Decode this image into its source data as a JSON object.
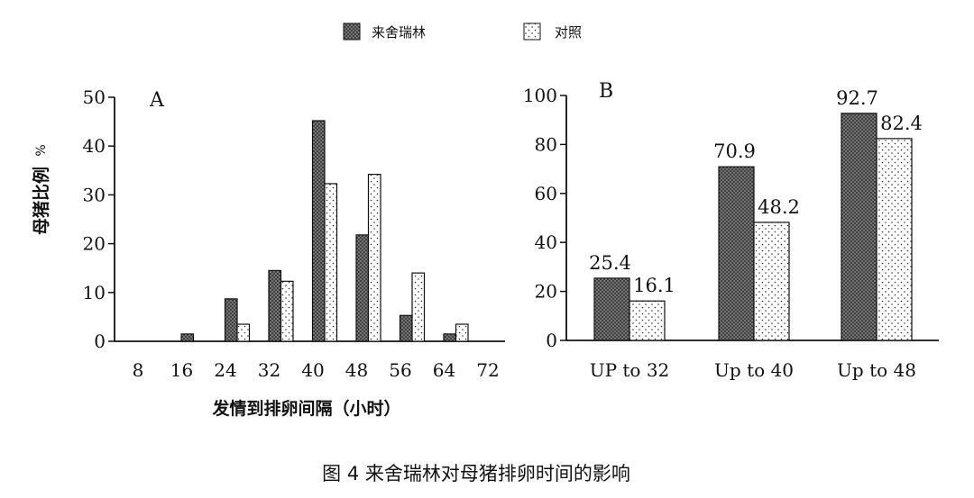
{
  "caption": "图 4 来舍瑞林对母猪排卵时间的影响",
  "legend": [
    {
      "label": "来舍瑞林",
      "pattern": "crosshatch"
    },
    {
      "label": "对照",
      "pattern": "dots"
    }
  ],
  "xlabel": "发情到排卵间隔（小时）",
  "ylabel": "母猪比例",
  "ylabel_unit": "%",
  "colors": {
    "stroke": "#111111",
    "treatment_fill": "#7a7a7a",
    "control_fill": "#ffffff"
  },
  "chart_data": [
    {
      "type": "bar",
      "panel_label": "A",
      "x_ticks": [
        "8",
        "16",
        "24",
        "32",
        "40",
        "48",
        "56",
        "64",
        "72"
      ],
      "ylim": [
        0,
        50
      ],
      "y_ticks": [
        "0",
        "10",
        "20",
        "30",
        "40",
        "50"
      ],
      "grid": false,
      "series": [
        {
          "name": "来舍瑞林",
          "values": [
            0,
            1.5,
            8.7,
            14.5,
            45.2,
            21.8,
            5.3,
            1.5,
            0
          ]
        },
        {
          "name": "对照",
          "values": [
            0,
            0,
            3.5,
            12.3,
            32.3,
            34.2,
            14.0,
            3.5,
            0
          ]
        }
      ]
    },
    {
      "type": "bar",
      "panel_label": "B",
      "categories": [
        "UP to 32",
        "Up to 40",
        "Up to 48"
      ],
      "ylim": [
        0,
        100
      ],
      "y_ticks": [
        "0",
        "20",
        "40",
        "60",
        "80",
        "100"
      ],
      "grid": false,
      "series": [
        {
          "name": "来舍瑞林",
          "values": [
            25.4,
            70.9,
            92.7
          ],
          "labels": [
            "25.4",
            "70.9",
            "92.7"
          ]
        },
        {
          "name": "对照",
          "values": [
            16.1,
            48.2,
            82.4
          ],
          "labels": [
            "16.1",
            "48.2",
            "82.4"
          ]
        }
      ]
    }
  ]
}
